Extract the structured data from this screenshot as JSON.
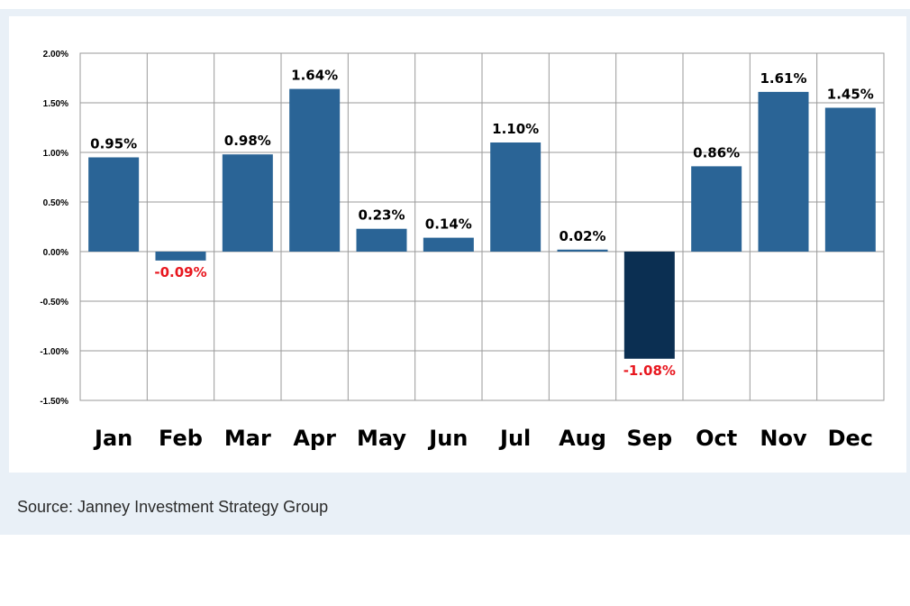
{
  "source_text": "Source: Janney Investment Strategy Group",
  "colors": {
    "bar": "#2a6496",
    "bar_highlight": "#0b2f52",
    "negative_label": "#e8171f",
    "positive_label": "#000000",
    "grid": "#9a9a9a",
    "panel_bg": "#e9f0f7"
  },
  "chart_data": {
    "type": "bar",
    "categories": [
      "Jan",
      "Feb",
      "Mar",
      "Apr",
      "May",
      "Jun",
      "Jul",
      "Aug",
      "Sep",
      "Oct",
      "Nov",
      "Dec"
    ],
    "values": [
      0.95,
      -0.09,
      0.98,
      1.64,
      0.23,
      0.14,
      1.1,
      0.02,
      -1.08,
      0.86,
      1.61,
      1.45
    ],
    "labels": [
      "0.95%",
      "-0.09%",
      "0.98%",
      "1.64%",
      "0.23%",
      "0.14%",
      "1.10%",
      "0.02%",
      "-1.08%",
      "0.86%",
      "1.61%",
      "1.45%"
    ],
    "highlight_index": 8,
    "ylim": [
      -1.5,
      2.0
    ],
    "yticks": [
      2.0,
      1.5,
      1.0,
      0.5,
      0.0,
      -0.5,
      -1.0,
      -1.5
    ],
    "ytick_labels": [
      "2.00%",
      "1.50%",
      "1.00%",
      "0.50%",
      "0.00%",
      "-0.50%",
      "-1.00%",
      "-1.50%"
    ],
    "grid": true,
    "title": "",
    "xlabel": "",
    "ylabel": ""
  }
}
